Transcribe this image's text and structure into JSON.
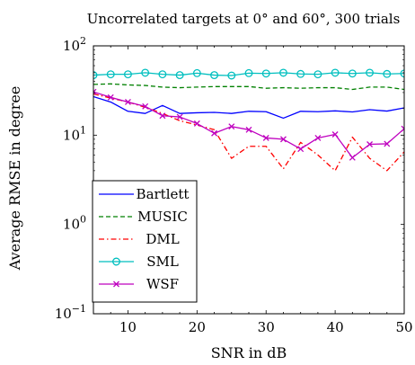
{
  "chart_data": {
    "type": "line",
    "title": "Uncorrelated targets at 0° and 60°,  300 trials",
    "xlabel": "SNR in dB",
    "ylabel": "Average RMSE in degree",
    "xlim": [
      5,
      50
    ],
    "ylim": [
      0.1,
      100
    ],
    "yscale": "log",
    "grid": false,
    "legend_position": "bottom-left",
    "x_ticks": [
      10,
      20,
      30,
      40,
      50
    ],
    "y_ticks": [
      {
        "value": 0.1,
        "base": "10",
        "exp": "−1"
      },
      {
        "value": 1,
        "base": "10",
        "exp": "0"
      },
      {
        "value": 10,
        "base": "10",
        "exp": "1"
      },
      {
        "value": 100,
        "base": "10",
        "exp": "2"
      }
    ],
    "x": [
      5,
      7.5,
      10,
      12.5,
      15,
      17.5,
      20,
      22.5,
      25,
      27.5,
      30,
      32.5,
      35,
      37.5,
      40,
      42.5,
      45,
      47.5,
      50
    ],
    "series": [
      {
        "name": "Bartlett",
        "color": "#0000ff",
        "dash": "solid",
        "marker": "none",
        "values": [
          27,
          23.5,
          18.5,
          17.5,
          21.5,
          17.5,
          17.8,
          18,
          17.5,
          18.5,
          18.3,
          15.5,
          18.5,
          18.3,
          18.7,
          18.2,
          19.3,
          18.6,
          20.2
        ]
      },
      {
        "name": "MUSIC",
        "color": "#008000",
        "dash": "dashed",
        "marker": "none",
        "values": [
          37,
          37.5,
          36.5,
          36,
          34.5,
          34,
          34.5,
          35,
          35,
          35,
          33.5,
          34,
          33.5,
          34,
          34,
          32.5,
          34.5,
          34.5,
          32.5
        ]
      },
      {
        "name": "DML",
        "color": "#ff0000",
        "dash": "dashdot",
        "marker": "none",
        "values": [
          29,
          26,
          23.5,
          20.5,
          17.5,
          14.5,
          13,
          11.5,
          5.5,
          7.5,
          7.5,
          4.2,
          8.3,
          6,
          4,
          9.5,
          5.5,
          4,
          6.5
        ]
      },
      {
        "name": "SML",
        "color": "#00bfbf",
        "dash": "solid",
        "marker": "circle",
        "values": [
          47,
          48,
          48,
          50,
          48,
          47,
          49.5,
          47,
          46.5,
          49.5,
          49,
          50,
          48.5,
          48,
          50,
          49,
          50,
          48.5,
          49
        ]
      },
      {
        "name": "WSF",
        "color": "#bf00bf",
        "dash": "solid",
        "marker": "cross",
        "values": [
          30.5,
          26.5,
          23.5,
          21,
          16.5,
          16,
          13.5,
          10.5,
          12.5,
          11.5,
          9.3,
          9,
          7,
          9.3,
          10.2,
          5.6,
          7.9,
          8,
          11.8
        ]
      }
    ]
  }
}
